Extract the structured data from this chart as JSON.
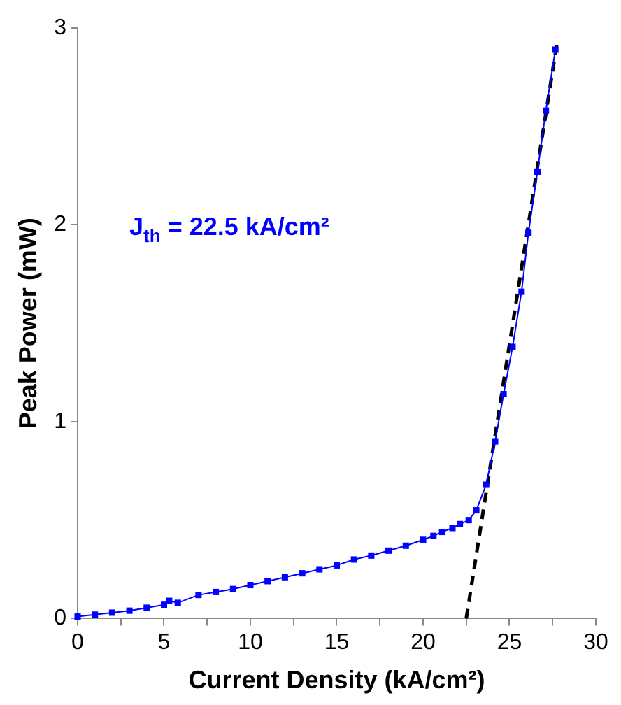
{
  "chart_data": {
    "type": "line",
    "xlabel": "Current Density (kA/cm²)",
    "ylabel": "Peak Power (mW)",
    "xlim": [
      0,
      30
    ],
    "xticks": [
      0,
      {
        "value": 2.5,
        "label": null
      },
      5,
      {
        "value": 7.5,
        "label": null
      },
      10,
      {
        "value": 12.5,
        "label": null
      },
      15,
      {
        "value": 17.5,
        "label": null
      },
      20,
      {
        "value": 22.5,
        "label": null
      },
      25,
      {
        "value": 27.5,
        "label": null
      },
      30
    ],
    "ylim": [
      0,
      3
    ],
    "yticks": [
      0,
      1,
      2,
      3
    ],
    "grid": false,
    "legend": false,
    "annotations": [
      "J$_{th}$ = 22.5 kA/cm²"
    ],
    "series": [
      {
        "color": "#0000ff",
        "marker": "square",
        "line_style": "solid",
        "x": [
          0,
          1,
          2,
          3,
          4,
          5,
          5.3,
          5.8,
          7,
          8,
          9,
          10,
          11,
          12,
          13,
          14,
          15,
          16,
          17,
          18,
          19,
          20,
          20.6,
          21.1,
          21.7,
          22.13,
          22.64,
          23.08,
          23.65,
          24.17,
          24.66,
          25.18,
          25.7,
          26.1,
          26.62,
          27.11,
          27.66
        ],
        "values": [
          0.01,
          0.02,
          0.03,
          0.04,
          0.055,
          0.07,
          0.09,
          0.08,
          0.12,
          0.135,
          0.15,
          0.17,
          0.19,
          0.21,
          0.23,
          0.25,
          0.27,
          0.3,
          0.32,
          0.345,
          0.37,
          0.4,
          0.42,
          0.44,
          0.46,
          0.48,
          0.5,
          0.55,
          0.68,
          0.9,
          1.14,
          1.38,
          1.66,
          1.96,
          2.27,
          2.58,
          2.89
        ]
      },
      {
        "color": "#000000",
        "marker": "none",
        "line_style": "dashed",
        "x": [
          22.5,
          27.8
        ],
        "values": [
          0,
          2.95
        ]
      }
    ]
  }
}
